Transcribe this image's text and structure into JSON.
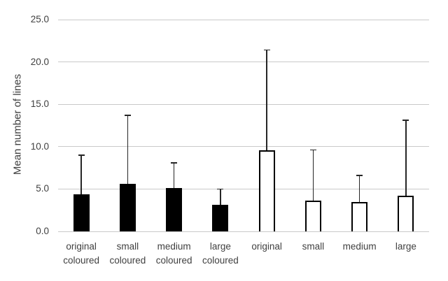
{
  "chart_data": {
    "type": "bar",
    "title": "",
    "xlabel": "",
    "ylabel": "Mean number of lines",
    "ylim": [
      0,
      25
    ],
    "y_tick_interval": 5,
    "y_tick_labels": [
      "0.0",
      "5.0",
      "10.0",
      "15.0",
      "20.0",
      "25.0"
    ],
    "grid": true,
    "legend": "none",
    "categories": [
      "original coloured",
      "small coloured",
      "medium coloured",
      "large coloured",
      "original",
      "small",
      "medium",
      "large"
    ],
    "series": [
      {
        "name": "Mean number of lines",
        "values": [
          4.4,
          5.6,
          5.1,
          3.1,
          9.6,
          3.6,
          3.5,
          4.2
        ],
        "error_bar_tops": [
          9.0,
          13.7,
          8.1,
          5.0,
          21.4,
          9.6,
          6.6,
          13.1
        ],
        "bar_fills": [
          "#000000",
          "#000000",
          "#000000",
          "#000000",
          "#ffffff",
          "#ffffff",
          "#ffffff",
          "#ffffff"
        ]
      }
    ],
    "colors": {
      "bar_filled": "#000000",
      "bar_outline_fill": "#ffffff",
      "bar_outline_border": "#000000",
      "error_bar": "#262626",
      "gridline": "#c9c9c9",
      "text": "#404040",
      "background": "#ffffff"
    }
  }
}
